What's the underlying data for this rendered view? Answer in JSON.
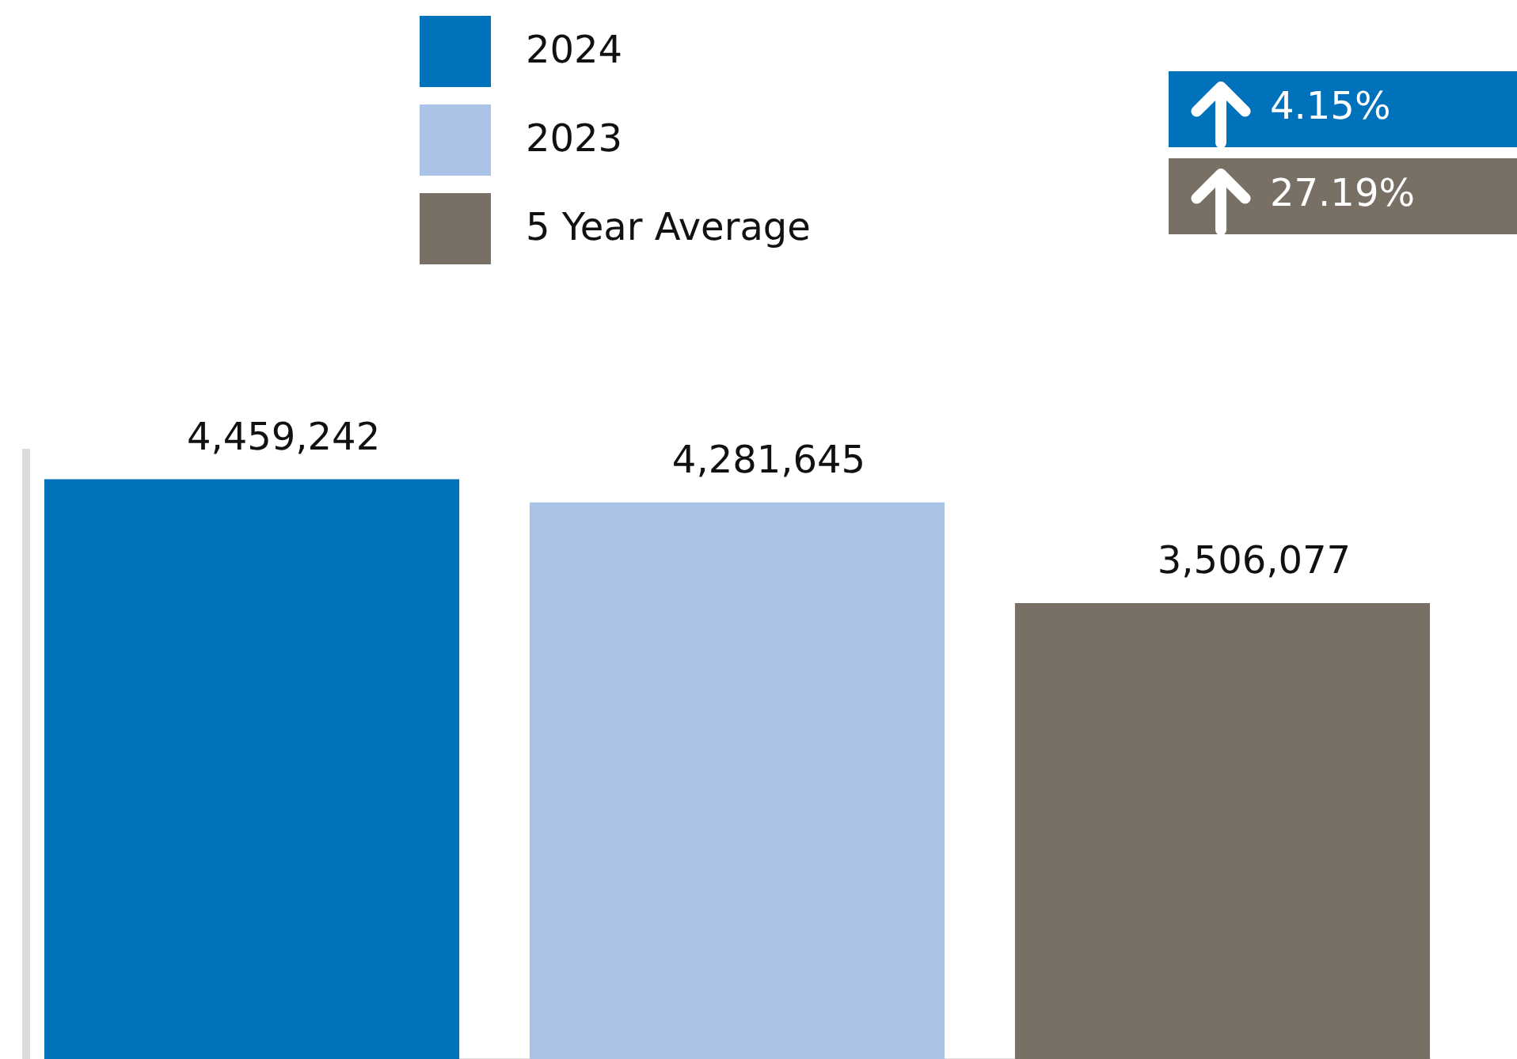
{
  "chart_data": {
    "type": "bar",
    "stacked": true,
    "categories": [
      null,
      null,
      null
    ],
    "series": [
      {
        "name": "2024",
        "color": "#0071bb",
        "values": [
          4459242,
          null,
          null
        ],
        "value_labels": [
          "4,459,242",
          null,
          null
        ]
      },
      {
        "name": "2023",
        "color": "#a9c2e6",
        "values": [
          null,
          4281645,
          null
        ],
        "value_labels": [
          null,
          "4,281,645",
          null
        ]
      },
      {
        "name": "5 Year Average",
        "color": "#786f65",
        "values": [
          null,
          null,
          3506077
        ],
        "value_labels": [
          null,
          null,
          "3,506,077"
        ]
      }
    ],
    "ylim": [
      0,
      4700000
    ],
    "legend": "top",
    "tick_labels": false,
    "annotations": [
      "4.15%",
      "27.19%"
    ]
  }
}
